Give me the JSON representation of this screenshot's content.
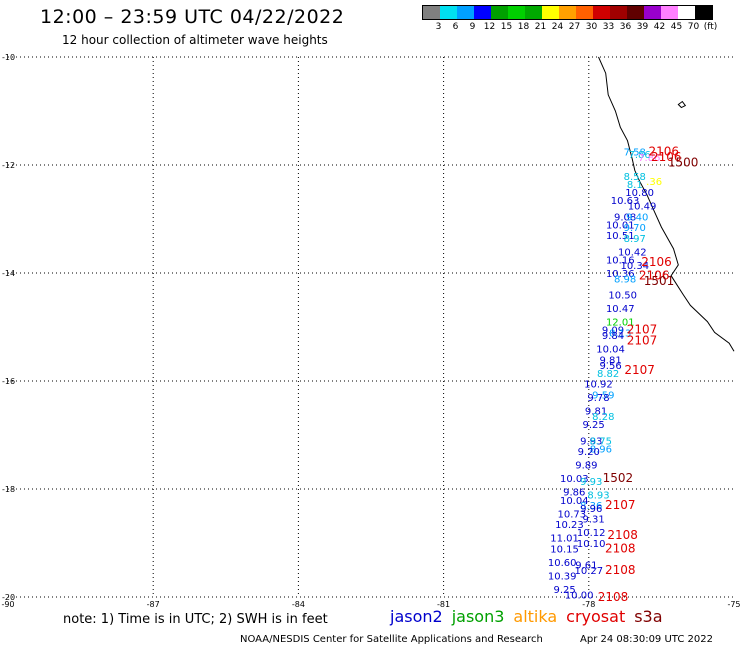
{
  "header": {
    "title": "12:00 – 23:59 UTC 04/22/2022",
    "subtitle": "12 hour collection of altimeter wave heights"
  },
  "legend": {
    "colors": [
      "#808080",
      "#00e0f0",
      "#00a0ff",
      "#0000ff",
      "#00a000",
      "#00d000",
      "#00a800",
      "#ffff00",
      "#ffa000",
      "#ff6000",
      "#d00000",
      "#a00000",
      "#600000",
      "#9900cc",
      "#ff80ff",
      "#ffffff",
      "#000000"
    ],
    "labels": [
      "3",
      "6",
      "9",
      "12",
      "15",
      "18",
      "21",
      "24",
      "27",
      "30",
      "33",
      "36",
      "39",
      "42",
      "45",
      "70",
      "(ft)"
    ]
  },
  "axes": {
    "y_labels": [
      "-10",
      "-12",
      "-14",
      "-16",
      "-18",
      "-20"
    ],
    "x_labels": [
      "-90",
      "-87",
      "-84",
      "-81",
      "-78",
      "-75"
    ]
  },
  "satellites": [
    {
      "name": "jason2",
      "color": "#0000cc"
    },
    {
      "name": "jason3",
      "color": "#00a000"
    },
    {
      "name": "altika",
      "color": "#ff9900"
    },
    {
      "name": "cryosat",
      "color": "#e00000"
    },
    {
      "name": "s3a",
      "color": "#800000"
    }
  ],
  "observations": [
    {
      "text": "7.58",
      "lon": -77.05,
      "lat": -11.75,
      "color": "#00a0ff"
    },
    {
      "text": "7.86",
      "lon": -76.95,
      "lat": -11.8,
      "color": "#00c0e0"
    },
    {
      "text": "7.86",
      "lon": -76.75,
      "lat": -11.85,
      "color": "#ff80ff"
    },
    {
      "text": "8.58",
      "lon": -77.05,
      "lat": -12.2,
      "color": "#00c0e0"
    },
    {
      "text": "8.1",
      "lon": -77.05,
      "lat": -12.35,
      "color": "#00c0e0"
    },
    {
      "text": ".36",
      "lon": -76.65,
      "lat": -12.3,
      "color": "#ffff00"
    },
    {
      "text": "10.80",
      "lon": -76.95,
      "lat": -12.5,
      "color": "#0000cc"
    },
    {
      "text": "10.63",
      "lon": -77.25,
      "lat": -12.65,
      "color": "#0000cc"
    },
    {
      "text": "10.49",
      "lon": -76.9,
      "lat": -12.75,
      "color": "#0000cc"
    },
    {
      "text": "9.08",
      "lon": -77.25,
      "lat": -12.95,
      "color": "#0000cc"
    },
    {
      "text": "9.40",
      "lon": -77.0,
      "lat": -12.95,
      "color": "#00a0ff"
    },
    {
      "text": "10.01",
      "lon": -77.35,
      "lat": -13.1,
      "color": "#0000cc"
    },
    {
      "text": "9.70",
      "lon": -77.05,
      "lat": -13.15,
      "color": "#00a0ff"
    },
    {
      "text": "10.51",
      "lon": -77.35,
      "lat": -13.3,
      "color": "#0000cc"
    },
    {
      "text": "8.97",
      "lon": -77.05,
      "lat": -13.35,
      "color": "#00c0e0"
    },
    {
      "text": "10.42",
      "lon": -77.1,
      "lat": -13.6,
      "color": "#0000cc"
    },
    {
      "text": "10.16",
      "lon": -77.35,
      "lat": -13.75,
      "color": "#0000cc"
    },
    {
      "text": "10.34",
      "lon": -77.05,
      "lat": -13.85,
      "color": "#0000cc"
    },
    {
      "text": "10.36",
      "lon": -77.35,
      "lat": -14.0,
      "color": "#0000cc"
    },
    {
      "text": "8.98",
      "lon": -77.25,
      "lat": -14.1,
      "color": "#00a0ff"
    },
    {
      "text": "10.50",
      "lon": -77.3,
      "lat": -14.4,
      "color": "#0000cc"
    },
    {
      "text": "10.47",
      "lon": -77.35,
      "lat": -14.65,
      "color": "#0000cc"
    },
    {
      "text": "12.01",
      "lon": -77.35,
      "lat": -14.9,
      "color": "#00d000"
    },
    {
      "text": "9.09",
      "lon": -77.5,
      "lat": -15.05,
      "color": "#0000cc"
    },
    {
      "text": "8.13",
      "lon": -77.35,
      "lat": -15.1,
      "color": "#00a0ff"
    },
    {
      "text": "9.84",
      "lon": -77.5,
      "lat": -15.15,
      "color": "#0000cc"
    },
    {
      "text": "10.04",
      "lon": -77.55,
      "lat": -15.4,
      "color": "#0000cc"
    },
    {
      "text": "9.81",
      "lon": -77.55,
      "lat": -15.6,
      "color": "#0000cc"
    },
    {
      "text": "9.56",
      "lon": -77.55,
      "lat": -15.7,
      "color": "#0000cc"
    },
    {
      "text": "8.82",
      "lon": -77.6,
      "lat": -15.85,
      "color": "#00c0e0"
    },
    {
      "text": "10.92",
      "lon": -77.8,
      "lat": -16.05,
      "color": "#0000cc"
    },
    {
      "text": "9.59",
      "lon": -77.7,
      "lat": -16.25,
      "color": "#00a0ff"
    },
    {
      "text": "9.78",
      "lon": -77.8,
      "lat": -16.3,
      "color": "#0000cc"
    },
    {
      "text": "9.81",
      "lon": -77.85,
      "lat": -16.55,
      "color": "#0000cc"
    },
    {
      "text": "8.28",
      "lon": -77.7,
      "lat": -16.65,
      "color": "#00c0e0"
    },
    {
      "text": "9.25",
      "lon": -77.9,
      "lat": -16.8,
      "color": "#0000cc"
    },
    {
      "text": "9.93",
      "lon": -77.95,
      "lat": -17.1,
      "color": "#0000cc"
    },
    {
      "text": "8.75",
      "lon": -77.75,
      "lat": -17.1,
      "color": "#00c0e0"
    },
    {
      "text": "8.96",
      "lon": -77.75,
      "lat": -17.25,
      "color": "#00a0ff"
    },
    {
      "text": "9.20",
      "lon": -78.0,
      "lat": -17.3,
      "color": "#0000cc"
    },
    {
      "text": "9.89",
      "lon": -78.05,
      "lat": -17.55,
      "color": "#0000cc"
    },
    {
      "text": "10.03",
      "lon": -78.3,
      "lat": -17.8,
      "color": "#0000cc"
    },
    {
      "text": "9.93",
      "lon": -77.95,
      "lat": -17.85,
      "color": "#00c0e0"
    },
    {
      "text": "9.86",
      "lon": -78.3,
      "lat": -18.05,
      "color": "#0000cc"
    },
    {
      "text": "8.93",
      "lon": -77.8,
      "lat": -18.1,
      "color": "#00c0e0"
    },
    {
      "text": "10.04",
      "lon": -78.3,
      "lat": -18.2,
      "color": "#0000cc"
    },
    {
      "text": "8.36",
      "lon": -77.95,
      "lat": -18.3,
      "color": "#00a0ff"
    },
    {
      "text": "9.96",
      "lon": -77.95,
      "lat": -18.35,
      "color": "#0000cc"
    },
    {
      "text": "10.73",
      "lon": -78.35,
      "lat": -18.45,
      "color": "#0000cc"
    },
    {
      "text": "9.31",
      "lon": -77.9,
      "lat": -18.55,
      "color": "#0000cc"
    },
    {
      "text": "10.23",
      "lon": -78.4,
      "lat": -18.65,
      "color": "#0000cc"
    },
    {
      "text": "10.12",
      "lon": -77.95,
      "lat": -18.8,
      "color": "#0000cc"
    },
    {
      "text": "11.01",
      "lon": -78.5,
      "lat": -18.9,
      "color": "#0000cc"
    },
    {
      "text": "10.10",
      "lon": -77.95,
      "lat": -19.0,
      "color": "#0000cc"
    },
    {
      "text": "10.15",
      "lon": -78.5,
      "lat": -19.1,
      "color": "#0000cc"
    },
    {
      "text": "10.60",
      "lon": -78.55,
      "lat": -19.35,
      "color": "#0000cc"
    },
    {
      "text": "9.61",
      "lon": -78.05,
      "lat": -19.4,
      "color": "#0000cc"
    },
    {
      "text": "10.27",
      "lon": -78.0,
      "lat": -19.5,
      "color": "#0000cc"
    },
    {
      "text": "10.39",
      "lon": -78.55,
      "lat": -19.6,
      "color": "#0000cc"
    },
    {
      "text": "9.25",
      "lon": -78.5,
      "lat": -19.85,
      "color": "#0000cc"
    },
    {
      "text": "10.00",
      "lon": -78.2,
      "lat": -19.95,
      "color": "#0000cc"
    }
  ],
  "tracks": [
    {
      "text": "2106",
      "lon": -76.45,
      "lat": -11.75,
      "color": "#e00000"
    },
    {
      "text": "2106",
      "lon": -76.4,
      "lat": -11.85,
      "color": "#e00000"
    },
    {
      "text": "1500",
      "lon": -76.05,
      "lat": -11.95,
      "color": "#800000"
    },
    {
      "text": "2106",
      "lon": -76.6,
      "lat": -13.8,
      "color": "#e00000"
    },
    {
      "text": "2106",
      "lon": -76.65,
      "lat": -14.05,
      "color": "#e00000"
    },
    {
      "text": "1501",
      "lon": -76.55,
      "lat": -14.15,
      "color": "#800000"
    },
    {
      "text": "2107",
      "lon": -76.9,
      "lat": -15.05,
      "color": "#e00000"
    },
    {
      "text": "2107",
      "lon": -76.9,
      "lat": -15.25,
      "color": "#e00000"
    },
    {
      "text": "2107",
      "lon": -76.95,
      "lat": -15.8,
      "color": "#e00000"
    },
    {
      "text": "1502",
      "lon": -77.4,
      "lat": -17.8,
      "color": "#800000"
    },
    {
      "text": "2107",
      "lon": -77.35,
      "lat": -18.3,
      "color": "#e00000"
    },
    {
      "text": "2108",
      "lon": -77.3,
      "lat": -18.85,
      "color": "#e00000"
    },
    {
      "text": "2108",
      "lon": -77.35,
      "lat": -19.1,
      "color": "#e00000"
    },
    {
      "text": "2108",
      "lon": -77.35,
      "lat": -19.5,
      "color": "#e00000"
    },
    {
      "text": "2108",
      "lon": -77.5,
      "lat": -20.0,
      "color": "#e00000"
    }
  ],
  "coastline": [
    [
      -77.8,
      -10.0
    ],
    [
      -77.65,
      -10.3
    ],
    [
      -77.6,
      -10.7
    ],
    [
      -77.45,
      -11.0
    ],
    [
      -77.35,
      -11.3
    ],
    [
      -77.2,
      -11.55
    ],
    [
      -77.1,
      -11.9
    ],
    [
      -77.05,
      -12.1
    ],
    [
      -76.95,
      -12.3
    ],
    [
      -76.8,
      -12.55
    ],
    [
      -76.65,
      -12.85
    ],
    [
      -76.5,
      -13.15
    ],
    [
      -76.25,
      -13.55
    ],
    [
      -76.15,
      -13.85
    ],
    [
      -76.3,
      -14.05
    ],
    [
      -76.05,
      -14.4
    ],
    [
      -75.9,
      -14.6
    ],
    [
      -75.55,
      -14.9
    ],
    [
      -75.4,
      -15.1
    ],
    [
      -75.1,
      -15.3
    ],
    [
      -75.0,
      -15.45
    ]
  ],
  "notes": {
    "footer": "note:  1) Time is in UTC; 2) SWH is in feet",
    "credit": "NOAA/NESDIS Center for Satellite Applications and Research",
    "generated": "Apr 24 08:30:09 UTC 2022"
  }
}
